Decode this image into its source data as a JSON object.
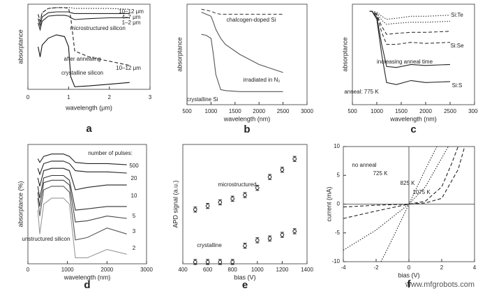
{
  "chart_data": [
    {
      "type": "line",
      "panel": "a",
      "xlabel": "wavelength (μm)",
      "ylabel": "absorptance",
      "xlim": [
        0,
        3
      ],
      "xticks": [
        0,
        1,
        2,
        3
      ],
      "ylim": [
        0,
        1
      ],
      "x": [
        0.25,
        0.3,
        0.35,
        0.5,
        0.7,
        0.9,
        1.0,
        1.05,
        1.15,
        1.5,
        2.0,
        2.5
      ],
      "annotations": [
        "microstructured silicon",
        "10–12 μm"
      ],
      "series": [
        {
          "name": "10–12 μm",
          "color": "#222",
          "style": "dotted",
          "values": [
            0.88,
            0.8,
            0.9,
            0.95,
            0.96,
            0.96,
            0.96,
            0.96,
            0.95,
            0.95,
            0.95,
            0.94
          ]
        },
        {
          "name": "4–7 μm",
          "color": "#222",
          "style": "solid",
          "values": [
            0.83,
            0.75,
            0.85,
            0.9,
            0.91,
            0.91,
            0.91,
            0.9,
            0.89,
            0.89,
            0.89,
            0.89
          ]
        },
        {
          "name": "1–2 μm",
          "color": "#222",
          "style": "solid",
          "values": [
            0.78,
            0.7,
            0.8,
            0.86,
            0.87,
            0.87,
            0.86,
            0.84,
            0.82,
            0.83,
            0.84,
            0.84
          ]
        },
        {
          "name": "after annealing",
          "color": "#222",
          "style": "dashed",
          "values": [
            0.88,
            0.8,
            0.9,
            0.95,
            0.96,
            0.96,
            0.95,
            0.85,
            0.45,
            0.38,
            0.33,
            0.28
          ]
        },
        {
          "name": "crystalline silicon",
          "color": "#111",
          "style": "solid",
          "values": [
            0.5,
            0.38,
            0.52,
            0.6,
            0.64,
            0.62,
            0.5,
            0.15,
            0.03,
            0.04,
            0.06,
            0.08
          ]
        }
      ]
    },
    {
      "type": "line",
      "panel": "b",
      "xlabel": "wavelength (nm)",
      "ylabel": "absorptance",
      "xlim": [
        500,
        3000
      ],
      "xticks": [
        500,
        1000,
        1500,
        2000,
        2500,
        3000
      ],
      "ylim": [
        0,
        1
      ],
      "x": [
        800,
        900,
        1000,
        1050,
        1100,
        1200,
        1300,
        1600,
        2000,
        2500
      ],
      "series": [
        {
          "name": "chalcogen-doped Si",
          "color": "#444",
          "style": "dashed",
          "values": [
            0.95,
            0.94,
            0.93,
            0.92,
            0.91,
            0.9,
            0.9,
            0.9,
            0.9,
            0.9
          ]
        },
        {
          "name": "irradiated in N₂",
          "color": "#555",
          "style": "solid",
          "values": [
            0.92,
            0.9,
            0.88,
            0.82,
            0.75,
            0.66,
            0.6,
            0.5,
            0.4,
            0.32
          ]
        },
        {
          "name": "crystalline Si",
          "color": "#555",
          "style": "solid",
          "values": [
            0.7,
            0.69,
            0.66,
            0.5,
            0.3,
            0.15,
            0.14,
            0.13,
            0.13,
            0.13
          ]
        }
      ]
    },
    {
      "type": "line",
      "panel": "c",
      "xlabel": "wavelength (nm)",
      "ylabel": "absorptance",
      "xlim": [
        500,
        3000
      ],
      "xticks": [
        500,
        1000,
        1500,
        2000,
        2500,
        3000
      ],
      "ylim": [
        0,
        1
      ],
      "x": [
        850,
        900,
        1000,
        1100,
        1200,
        1400,
        1700,
        2000,
        2500
      ],
      "annotations": [
        "Si:Te",
        "Si:Se",
        "Si:S",
        "increasing anneal time",
        "anneal: 775 K"
      ],
      "series": [
        {
          "color": "#333",
          "style": "dotted",
          "values": [
            0.93,
            0.93,
            0.92,
            0.88,
            0.85,
            0.86,
            0.88,
            0.88,
            0.89
          ]
        },
        {
          "color": "#333",
          "style": "dotted",
          "values": [
            0.93,
            0.93,
            0.91,
            0.84,
            0.8,
            0.81,
            0.82,
            0.82,
            0.83
          ]
        },
        {
          "color": "#333",
          "style": "dashed",
          "values": [
            0.93,
            0.93,
            0.9,
            0.78,
            0.7,
            0.71,
            0.72,
            0.72,
            0.73
          ]
        },
        {
          "color": "#333",
          "style": "dashed",
          "values": [
            0.93,
            0.93,
            0.89,
            0.72,
            0.6,
            0.6,
            0.62,
            0.61,
            0.62
          ]
        },
        {
          "color": "#222",
          "style": "solid",
          "values": [
            0.93,
            0.93,
            0.87,
            0.6,
            0.38,
            0.37,
            0.4,
            0.39,
            0.4
          ]
        },
        {
          "color": "#222",
          "style": "solid",
          "values": [
            0.93,
            0.93,
            0.85,
            0.5,
            0.22,
            0.2,
            0.24,
            0.22,
            0.23
          ]
        }
      ]
    },
    {
      "type": "line",
      "panel": "d",
      "xlabel": "wavelength (nm)",
      "ylabel": "absorptance (%)",
      "xlim": [
        0,
        3000
      ],
      "xticks": [
        0,
        1000,
        2000,
        3000
      ],
      "ylim": [
        0,
        100
      ],
      "x": [
        250,
        300,
        400,
        600,
        900,
        1050,
        1200,
        1500,
        2000,
        2500
      ],
      "annotations": [
        "number of pulses:"
      ],
      "series": [
        {
          "name": "500",
          "color": "#222",
          "style": "solid",
          "values": [
            88,
            85,
            90,
            92,
            92,
            90,
            85,
            84,
            84,
            83
          ]
        },
        {
          "name": "20",
          "color": "#222",
          "style": "solid",
          "values": [
            80,
            75,
            84,
            86,
            86,
            84,
            78,
            77,
            77,
            76
          ]
        },
        {
          "name": "10",
          "color": "#222",
          "style": "solid",
          "values": [
            72,
            65,
            78,
            80,
            80,
            78,
            62,
            64,
            66,
            66
          ]
        },
        {
          "name": "5",
          "color": "#333",
          "style": "solid",
          "values": [
            65,
            55,
            72,
            74,
            74,
            70,
            45,
            46,
            48,
            48
          ]
        },
        {
          "name": "3",
          "color": "#444",
          "style": "solid",
          "values": [
            60,
            48,
            68,
            70,
            70,
            66,
            35,
            36,
            40,
            38
          ]
        },
        {
          "name": "2",
          "color": "#555",
          "style": "solid",
          "values": [
            55,
            40,
            62,
            65,
            65,
            60,
            20,
            22,
            30,
            25
          ]
        },
        {
          "name": "unstructured silicon",
          "color": "#999",
          "style": "solid",
          "values": [
            45,
            25,
            50,
            55,
            55,
            50,
            5,
            5,
            12,
            8
          ]
        }
      ]
    },
    {
      "type": "scatter",
      "panel": "e",
      "xlabel": "bias (V)",
      "ylabel": "APD signal (a.u.)",
      "xlim": [
        400,
        1400
      ],
      "xticks": [
        400,
        600,
        800,
        1000,
        1200,
        1400
      ],
      "ylim": [
        0,
        3.3
      ],
      "x": [
        500,
        600,
        700,
        800,
        900,
        1000,
        1100,
        1200,
        1300
      ],
      "series": [
        {
          "name": "microstructured",
          "color": "#222",
          "values": [
            1.5,
            1.6,
            1.7,
            1.8,
            1.9,
            2.1,
            2.4,
            2.6,
            2.9
          ],
          "errors": [
            0.07,
            0.07,
            0.07,
            0.07,
            0.07,
            0.07,
            0.07,
            0.07,
            0.07
          ]
        },
        {
          "name": "crystalline",
          "color": "#222",
          "values": [
            0.05,
            0.05,
            0.05,
            0.05,
            0.5,
            0.65,
            0.7,
            0.8,
            0.9
          ],
          "errors": [
            0.07,
            0.07,
            0.07,
            0.07,
            0.07,
            0.07,
            0.07,
            0.07,
            0.07
          ]
        }
      ]
    },
    {
      "type": "line",
      "panel": "f",
      "xlabel": "bias (V)",
      "ylabel": "current (mA)",
      "axes_at_zero": true,
      "xlim": [
        -4,
        4
      ],
      "xticks": [
        -4,
        -2,
        0,
        2,
        4
      ],
      "ylim": [
        -10,
        10
      ],
      "yticks": [
        -10,
        -5,
        0,
        5,
        10
      ],
      "series": [
        {
          "name": "no anneal",
          "color": "#222",
          "style": "dotted",
          "x": [
            -1.7,
            -1,
            0,
            1,
            1.7
          ],
          "values": [
            -10,
            -6,
            0,
            6,
            10
          ]
        },
        {
          "name": "725 K",
          "color": "#222",
          "style": "dotted",
          "x": [
            -4,
            -2,
            0,
            1,
            2,
            2.4
          ],
          "values": [
            -8,
            -4.5,
            0,
            3,
            8,
            10
          ]
        },
        {
          "name": "825 K",
          "color": "#222",
          "style": "dashed",
          "x": [
            -4,
            -2,
            0,
            1,
            2,
            2.6,
            3
          ],
          "values": [
            -2.5,
            -1.2,
            0,
            0.5,
            3,
            7,
            10
          ]
        },
        {
          "name": "1075 K",
          "color": "#222",
          "style": "dashed",
          "x": [
            -4,
            -2,
            0,
            1,
            2,
            3,
            3.4
          ],
          "values": [
            -0.5,
            -0.2,
            0,
            0.2,
            1,
            6,
            10
          ]
        }
      ]
    }
  ],
  "watermark": "www.mfgrobots.com"
}
